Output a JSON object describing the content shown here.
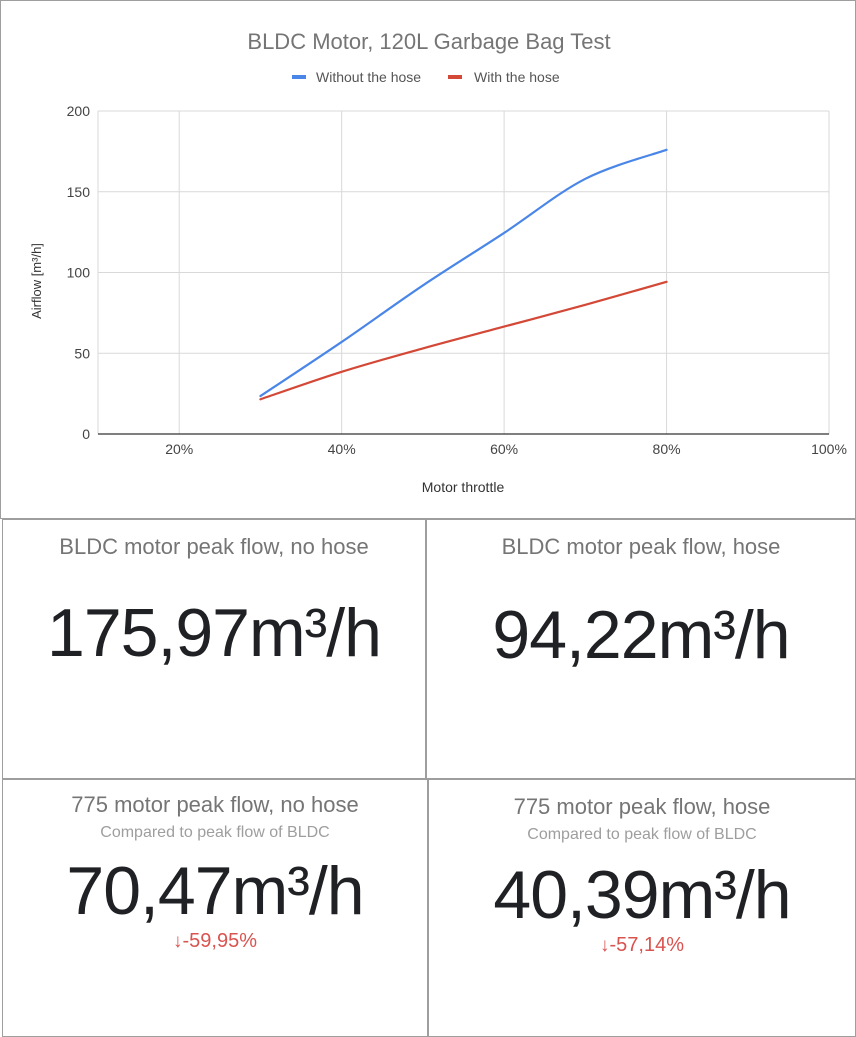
{
  "chart_data": {
    "type": "line",
    "title": "BLDC Motor, 120L Garbage Bag Test",
    "xlabel": "Motor throttle",
    "ylabel": "Airflow [m³/h]",
    "xlim": [
      0.1,
      1.0
    ],
    "ylim": [
      0,
      200
    ],
    "x_ticks": [
      "20%",
      "40%",
      "60%",
      "80%",
      "100%"
    ],
    "y_ticks": [
      "0",
      "50",
      "100",
      "150",
      "200"
    ],
    "grid": true,
    "legend_position": "top",
    "series": [
      {
        "name": "Without the hose",
        "color": "#4a86e8",
        "x": [
          0.3,
          0.4,
          0.5,
          0.6,
          0.7,
          0.8
        ],
        "y": [
          23.5,
          57,
          92,
          124.5,
          158,
          175.97
        ]
      },
      {
        "name": "With the hose",
        "color": "#d34836",
        "x": [
          0.3,
          0.4,
          0.5,
          0.6,
          0.7,
          0.8
        ],
        "y": [
          21.5,
          38.5,
          53,
          66.5,
          80,
          94.22
        ]
      }
    ]
  },
  "scorecards": [
    {
      "title": "BLDC motor peak flow, no hose",
      "value": "175,97m³/h"
    },
    {
      "title": "BLDC motor peak flow, hose",
      "value": "94,22m³/h"
    },
    {
      "title": "775 motor peak flow, no hose",
      "subtitle": "Compared to peak flow of BLDC",
      "value": "70,47m³/h",
      "delta_arrow": "↓",
      "delta": "-59,95%"
    },
    {
      "title": "775 motor peak flow, hose",
      "subtitle": "Compared to peak flow of BLDC",
      "value": "40,39m³/h",
      "delta_arrow": "↓",
      "delta": "-57,14%"
    }
  ]
}
